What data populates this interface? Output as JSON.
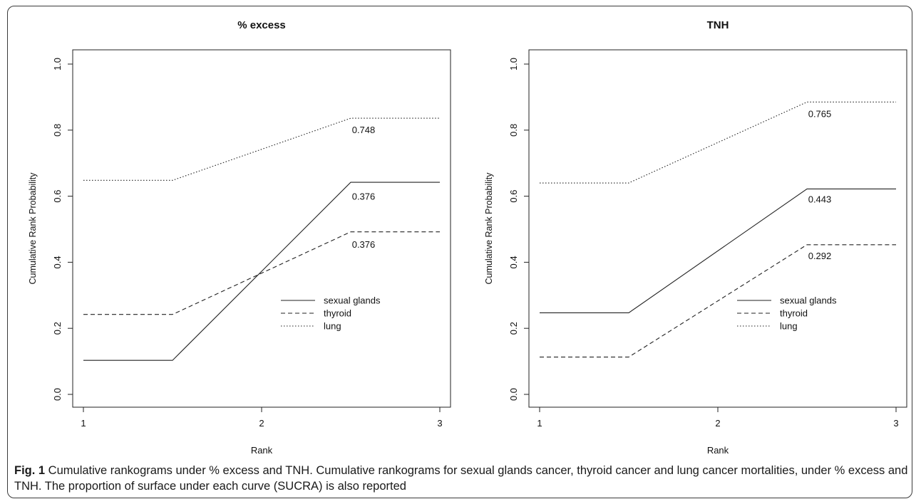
{
  "chart_data": [
    {
      "type": "line",
      "title": "% excess",
      "xlabel": "Rank",
      "ylabel": "Cumulative Rank Probability",
      "xlim": [
        1,
        3
      ],
      "ylim": [
        0,
        1
      ],
      "x_ticks": [
        "1",
        "2",
        "3"
      ],
      "y_ticks": [
        "0.0",
        "0.2",
        "0.4",
        "0.6",
        "0.8",
        "1.0"
      ],
      "x": [
        1,
        1.5,
        2.5,
        3
      ],
      "series": [
        {
          "name": "sexual glands",
          "style": "solid",
          "values": [
            0.103,
            0.103,
            0.642,
            0.642
          ]
        },
        {
          "name": "thyroid",
          "style": "dashed",
          "values": [
            0.242,
            0.242,
            0.492,
            0.492
          ]
        },
        {
          "name": "lung",
          "style": "dotted",
          "values": [
            0.648,
            0.648,
            0.836,
            0.836
          ]
        }
      ],
      "annotations": [
        {
          "text": "0.748",
          "x": 2.5,
          "y": 0.802
        },
        {
          "text": "0.376",
          "x": 2.5,
          "y": 0.6
        },
        {
          "text": "0.376",
          "x": 2.5,
          "y": 0.455
        }
      ],
      "legend": {
        "placement": "bottom-right",
        "entries": [
          "sexual glands",
          "thyroid",
          "lung"
        ]
      }
    },
    {
      "type": "line",
      "title": "TNH",
      "xlabel": "Rank",
      "ylabel": "Cumulative Rank Probability",
      "xlim": [
        1,
        3
      ],
      "ylim": [
        0,
        1
      ],
      "x_ticks": [
        "1",
        "2",
        "3"
      ],
      "y_ticks": [
        "0.0",
        "0.2",
        "0.4",
        "0.6",
        "0.8",
        "1.0"
      ],
      "x": [
        1,
        1.5,
        2.5,
        3
      ],
      "series": [
        {
          "name": "sexual glands",
          "style": "solid",
          "values": [
            0.247,
            0.247,
            0.622,
            0.622
          ]
        },
        {
          "name": "thyroid",
          "style": "dashed",
          "values": [
            0.113,
            0.113,
            0.453,
            0.453
          ]
        },
        {
          "name": "lung",
          "style": "dotted",
          "values": [
            0.64,
            0.64,
            0.885,
            0.885
          ]
        }
      ],
      "annotations": [
        {
          "text": "0.765",
          "x": 2.5,
          "y": 0.85
        },
        {
          "text": "0.443",
          "x": 2.5,
          "y": 0.592
        },
        {
          "text": "0.292",
          "x": 2.5,
          "y": 0.42
        }
      ],
      "legend": {
        "placement": "bottom-right",
        "entries": [
          "sexual glands",
          "thyroid",
          "lung"
        ]
      }
    }
  ],
  "caption": {
    "label": "Fig. 1",
    "text": " Cumulative rankograms under % excess and TNH. Cumulative rankograms for sexual glands cancer, thyroid cancer and lung cancer mortalities, under % excess and TNH. The proportion of surface under each curve (SUCRA) is also reported"
  }
}
